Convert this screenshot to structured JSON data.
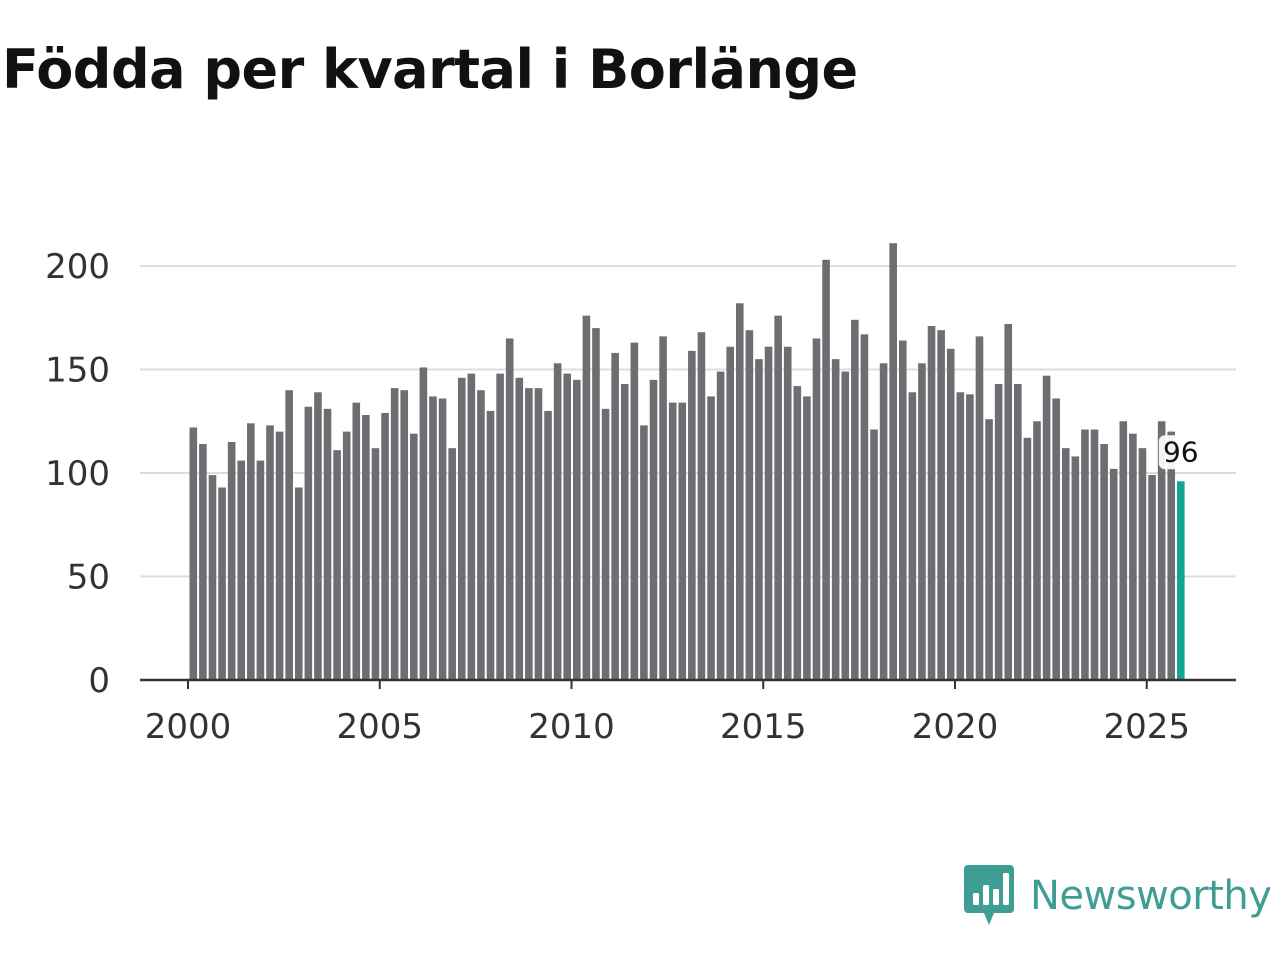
{
  "title": "Födda per kvartal i Borlänge",
  "brand": {
    "name": "Newsworthy",
    "logo_icon": "newsworthy-chart-icon",
    "color": "#3f9e93"
  },
  "chart_data": {
    "type": "bar",
    "title": "Födda per kvartal i Borlänge",
    "xlabel": "",
    "ylabel": "",
    "x_start": 2000.0,
    "x_step": 0.25,
    "xlim": [
      1997.5,
      2027.25
    ],
    "ylim": [
      0,
      225
    ],
    "yticks": [
      0,
      50,
      100,
      150,
      200
    ],
    "xticks": [
      2000,
      2005,
      2010,
      2015,
      2020,
      2025
    ],
    "grid": true,
    "bar_color": "#6e6d72",
    "highlight_color": "#15a396",
    "highlight_label": "96",
    "values": [
      122,
      114,
      99,
      93,
      115,
      106,
      124,
      106,
      123,
      120,
      140,
      93,
      132,
      139,
      131,
      111,
      120,
      134,
      128,
      112,
      129,
      141,
      140,
      119,
      151,
      137,
      136,
      112,
      146,
      148,
      140,
      130,
      148,
      165,
      146,
      141,
      141,
      130,
      153,
      148,
      145,
      176,
      170,
      131,
      158,
      143,
      163,
      123,
      145,
      166,
      134,
      134,
      159,
      168,
      137,
      149,
      161,
      182,
      169,
      155,
      161,
      176,
      161,
      142,
      137,
      165,
      203,
      155,
      149,
      174,
      167,
      121,
      153,
      211,
      164,
      139,
      153,
      171,
      169,
      160,
      139,
      138,
      166,
      126,
      143,
      172,
      143,
      117,
      125,
      147,
      136,
      112,
      108,
      121,
      121,
      114,
      102,
      125,
      119,
      112,
      99,
      125,
      120,
      96
    ]
  }
}
